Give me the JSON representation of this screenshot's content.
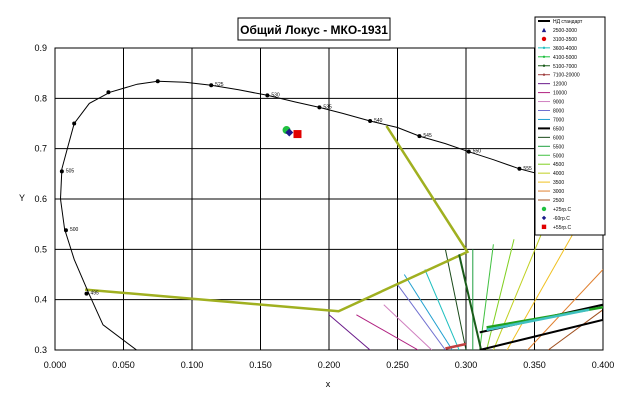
{
  "chart_data": {
    "type": "scatter",
    "title": "Общий Локус - МКО-1931",
    "xlabel": "x",
    "ylabel": "Y",
    "xlim": [
      0.0,
      0.4
    ],
    "ylim": [
      0.3,
      0.9
    ],
    "x_ticks": [
      "0.000",
      "0.050",
      "0.100",
      "0.150",
      "0.200",
      "0.250",
      "0.300",
      "0.350",
      "0.400"
    ],
    "y_ticks": [
      "0.3",
      "0.4",
      "0.5",
      "0.6",
      "0.7",
      "0.8",
      "0.9"
    ],
    "grid": true,
    "legend_position": "right",
    "spectral_locus": {
      "name": "НД стандарт",
      "color": "#000000",
      "curve": [
        [
          0.062,
          0.295
        ],
        [
          0.035,
          0.35
        ],
        [
          0.025,
          0.41
        ],
        [
          0.014,
          0.48
        ],
        [
          0.007,
          0.54
        ],
        [
          0.004,
          0.6
        ],
        [
          0.005,
          0.66
        ],
        [
          0.009,
          0.7
        ],
        [
          0.014,
          0.75
        ],
        [
          0.025,
          0.79
        ],
        [
          0.04,
          0.812
        ],
        [
          0.06,
          0.828
        ],
        [
          0.075,
          0.834
        ],
        [
          0.095,
          0.832
        ],
        [
          0.114,
          0.826
        ],
        [
          0.134,
          0.817
        ],
        [
          0.155,
          0.806
        ],
        [
          0.175,
          0.793
        ],
        [
          0.193,
          0.782
        ],
        [
          0.21,
          0.77
        ],
        [
          0.23,
          0.755
        ],
        [
          0.25,
          0.742
        ],
        [
          0.266,
          0.725
        ],
        [
          0.285,
          0.71
        ],
        [
          0.302,
          0.694
        ],
        [
          0.32,
          0.678
        ],
        [
          0.339,
          0.66
        ],
        [
          0.36,
          0.645
        ],
        [
          0.38,
          0.625
        ],
        [
          0.4,
          0.608
        ]
      ],
      "labeled_points": [
        {
          "x": 0.023,
          "y": 0.412,
          "label": "495"
        },
        {
          "x": 0.008,
          "y": 0.538,
          "label": "500"
        },
        {
          "x": 0.005,
          "y": 0.655,
          "label": "505"
        },
        {
          "x": 0.014,
          "y": 0.75,
          "label": ""
        },
        {
          "x": 0.039,
          "y": 0.812,
          "label": ""
        },
        {
          "x": 0.075,
          "y": 0.834,
          "label": ""
        },
        {
          "x": 0.114,
          "y": 0.826,
          "label": "525"
        },
        {
          "x": 0.155,
          "y": 0.806,
          "label": "530"
        },
        {
          "x": 0.193,
          "y": 0.782,
          "label": "535"
        },
        {
          "x": 0.23,
          "y": 0.755,
          "label": "540"
        },
        {
          "x": 0.266,
          "y": 0.725,
          "label": "545"
        },
        {
          "x": 0.302,
          "y": 0.694,
          "label": "550"
        },
        {
          "x": 0.339,
          "y": 0.66,
          "label": "555"
        }
      ]
    },
    "tolerance_polygon": {
      "color": "#a0b020",
      "points": [
        [
          0.022,
          0.42
        ],
        [
          0.207,
          0.377
        ],
        [
          0.301,
          0.495
        ],
        [
          0.242,
          0.745
        ]
      ]
    },
    "boxes": [
      {
        "color": "#1a5c1a",
        "points": [
          [
            0.295,
            0.49
          ],
          [
            0.311,
            0.3
          ],
          [
            0.311,
            0.3
          ]
        ]
      },
      {
        "color": "#000000",
        "points": [
          [
            0.31,
            0.335
          ],
          [
            0.4,
            0.39
          ],
          [
            0.4,
            0.36
          ],
          [
            0.31,
            0.3
          ]
        ]
      }
    ],
    "isotherm_lines": [
      {
        "color": "#6a1a8a",
        "points": [
          [
            0.23,
            0.3
          ],
          [
            0.2,
            0.37
          ]
        ]
      },
      {
        "color": "#b02080",
        "points": [
          [
            0.265,
            0.3
          ],
          [
            0.22,
            0.37
          ]
        ]
      },
      {
        "color": "#d080c0",
        "points": [
          [
            0.275,
            0.3
          ],
          [
            0.24,
            0.39
          ]
        ]
      },
      {
        "color": "#7070d0",
        "points": [
          [
            0.285,
            0.3
          ],
          [
            0.25,
            0.43
          ]
        ]
      },
      {
        "color": "#20a0d0",
        "points": [
          [
            0.29,
            0.3
          ],
          [
            0.255,
            0.45
          ]
        ]
      },
      {
        "color": "#20c0c0",
        "points": [
          [
            0.295,
            0.3
          ],
          [
            0.27,
            0.46
          ]
        ]
      },
      {
        "color": "#1a4a1a",
        "points": [
          [
            0.3,
            0.3
          ],
          [
            0.285,
            0.5
          ]
        ]
      },
      {
        "color": "#20a040",
        "points": [
          [
            0.305,
            0.3
          ],
          [
            0.305,
            0.5
          ]
        ]
      },
      {
        "color": "#40c040",
        "points": [
          [
            0.31,
            0.3
          ],
          [
            0.32,
            0.51
          ]
        ]
      },
      {
        "color": "#80d020",
        "points": [
          [
            0.315,
            0.3
          ],
          [
            0.335,
            0.52
          ]
        ]
      },
      {
        "color": "#c0d020",
        "points": [
          [
            0.32,
            0.3
          ],
          [
            0.355,
            0.53
          ]
        ]
      },
      {
        "color": "#f0c020",
        "points": [
          [
            0.33,
            0.3
          ],
          [
            0.38,
            0.54
          ]
        ]
      },
      {
        "color": "#e08030",
        "points": [
          [
            0.345,
            0.3
          ],
          [
            0.4,
            0.46
          ]
        ]
      },
      {
        "color": "#a05020",
        "points": [
          [
            0.36,
            0.3
          ],
          [
            0.4,
            0.38
          ]
        ]
      }
    ],
    "cluster_lines": [
      {
        "color": "#20a020",
        "points": [
          [
            0.315,
            0.345
          ],
          [
            0.4,
            0.385
          ]
        ]
      },
      {
        "color": "#40c0c0",
        "points": [
          [
            0.315,
            0.34
          ],
          [
            0.39,
            0.38
          ]
        ]
      },
      {
        "color": "#c04040",
        "points": [
          [
            0.285,
            0.303
          ],
          [
            0.3,
            0.312
          ]
        ]
      }
    ],
    "markers": [
      {
        "name": "+25гр.С",
        "color": "#20c040",
        "shape": "dot",
        "x": 0.169,
        "y": 0.737
      },
      {
        "name": "-60гр.С",
        "color": "#1a1a8a",
        "shape": "diamond",
        "x": 0.171,
        "y": 0.732
      },
      {
        "name": "+55гр.С",
        "color": "#e00000",
        "shape": "square",
        "x": 0.177,
        "y": 0.729
      }
    ],
    "legend": [
      {
        "label": "НД стандарт",
        "color": "#000000",
        "kind": "line-thick"
      },
      {
        "label": "2500-3000",
        "color": "#1a1a8a",
        "kind": "triangle"
      },
      {
        "label": "3100-3500",
        "color": "#e00000",
        "kind": "circle"
      },
      {
        "label": "3600-4000",
        "color": "#20c0c0",
        "kind": "line-x"
      },
      {
        "label": "4100-5000",
        "color": "#20c040",
        "kind": "line-x"
      },
      {
        "label": "5100-7000",
        "color": "#1a5c1a",
        "kind": "line-x"
      },
      {
        "label": "7100-20000",
        "color": "#a04040",
        "kind": "line-x"
      },
      {
        "label": "12000",
        "color": "#6a1a8a",
        "kind": "line"
      },
      {
        "label": "10000",
        "color": "#b02080",
        "kind": "line"
      },
      {
        "label": "9000",
        "color": "#d080c0",
        "kind": "line"
      },
      {
        "label": "8000",
        "color": "#7070d0",
        "kind": "line"
      },
      {
        "label": "7000",
        "color": "#20a0d0",
        "kind": "line"
      },
      {
        "label": "6500",
        "color": "#000000",
        "kind": "line-thick"
      },
      {
        "label": "6000",
        "color": "#1a4a1a",
        "kind": "line"
      },
      {
        "label": "5500",
        "color": "#20a040",
        "kind": "line"
      },
      {
        "label": "5000",
        "color": "#40c040",
        "kind": "line"
      },
      {
        "label": "4500",
        "color": "#80d020",
        "kind": "line"
      },
      {
        "label": "4000",
        "color": "#c0d020",
        "kind": "line"
      },
      {
        "label": "3500",
        "color": "#f0c020",
        "kind": "line"
      },
      {
        "label": "3000",
        "color": "#e08030",
        "kind": "line"
      },
      {
        "label": "2500",
        "color": "#a05020",
        "kind": "line"
      },
      {
        "label": "+25гр.С",
        "color": "#20c040",
        "kind": "dot"
      },
      {
        "label": "-60гр.С",
        "color": "#1a1a8a",
        "kind": "diamond"
      },
      {
        "label": "+55гр.С",
        "color": "#e00000",
        "kind": "square"
      }
    ]
  }
}
